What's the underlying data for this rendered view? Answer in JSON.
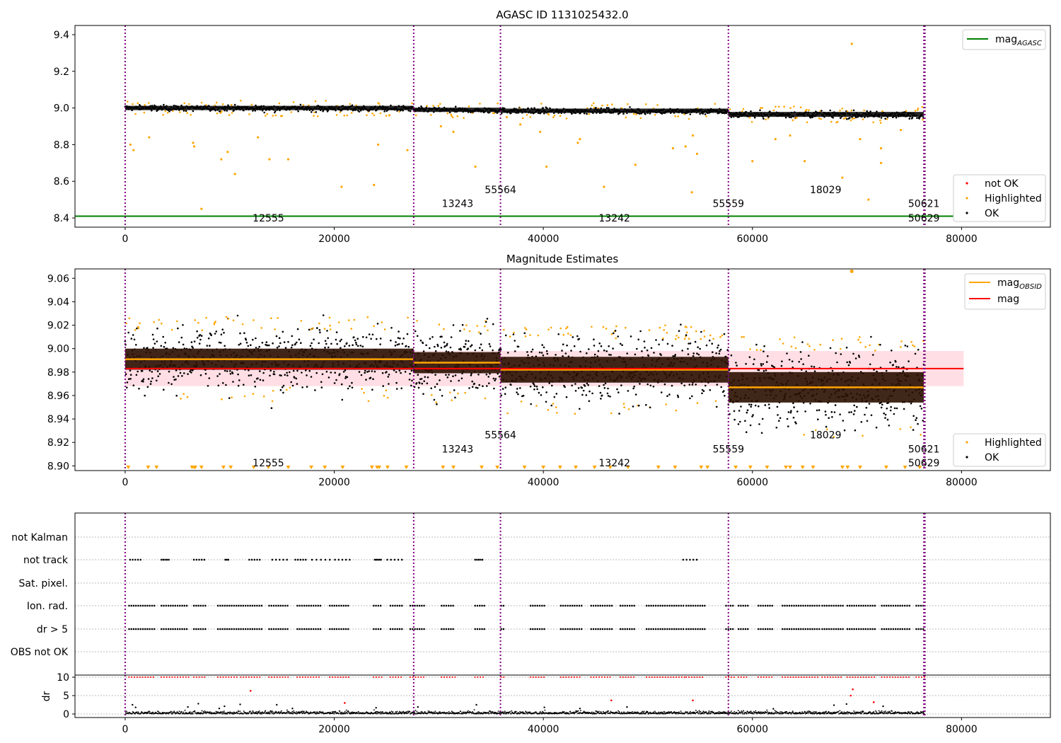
{
  "figure": {
    "background": "#ffffff",
    "colors": {
      "ok": "#000000",
      "highlighted": "#ffa500",
      "not_ok": "#ff0000",
      "agasc_line": "#008000",
      "obsid_mag": "#ffa500",
      "mag": "#ff0000",
      "obs_boundary": "#800080",
      "mag_band": "#ffc0cb"
    }
  },
  "chart_data": [
    {
      "id": "top",
      "type": "scatter",
      "title": "AGASC ID 1131025432.0",
      "xlabel": "",
      "ylabel": "",
      "xlim": [
        -4800,
        88500
      ],
      "ylim": [
        8.35,
        9.45
      ],
      "xticks": [
        0,
        20000,
        40000,
        60000,
        80000
      ],
      "yticks": [
        8.4,
        8.6,
        8.8,
        9.0,
        9.2,
        9.4
      ],
      "ytick_labels": [
        "8.4",
        "8.6",
        "8.8",
        "9.0",
        "9.2",
        "9.4"
      ],
      "grid": false,
      "obs_boundaries": [
        0,
        27600,
        35900,
        57700,
        76400,
        76500
      ],
      "agasc_mag": 8.41,
      "band_segments": [
        {
          "x": [
            0,
            27600
          ],
          "center": 9.0,
          "half": 0.013
        },
        {
          "x": [
            27600,
            35900
          ],
          "center": 8.99,
          "half": 0.013
        },
        {
          "x": [
            35900,
            57700
          ],
          "center": 8.985,
          "half": 0.013
        },
        {
          "x": [
            57700,
            76400
          ],
          "center": 8.965,
          "half": 0.015
        }
      ],
      "obsid_labels": [
        {
          "text": "12555",
          "x": 13700,
          "y": 8.4
        },
        {
          "text": "13243",
          "x": 31800,
          "y": 8.48
        },
        {
          "text": "55564",
          "x": 35900,
          "y": 8.555
        },
        {
          "text": "13242",
          "x": 46800,
          "y": 8.4
        },
        {
          "text": "55559",
          "x": 57700,
          "y": 8.48
        },
        {
          "text": "18029",
          "x": 67000,
          "y": 8.555
        },
        {
          "text": "50621",
          "x": 76400,
          "y": 8.48
        },
        {
          "text": "50629",
          "x": 76400,
          "y": 8.4
        }
      ],
      "outliers": [
        [
          500,
          8.8
        ],
        [
          800,
          8.77
        ],
        [
          2300,
          8.84
        ],
        [
          6500,
          8.81
        ],
        [
          6600,
          8.79
        ],
        [
          7300,
          8.45
        ],
        [
          9200,
          8.72
        ],
        [
          9800,
          8.76
        ],
        [
          10500,
          8.64
        ],
        [
          12700,
          8.84
        ],
        [
          13800,
          8.72
        ],
        [
          15600,
          8.72
        ],
        [
          20700,
          8.57
        ],
        [
          23800,
          8.58
        ],
        [
          24200,
          8.8
        ],
        [
          27000,
          8.77
        ],
        [
          30200,
          8.9
        ],
        [
          31400,
          8.87
        ],
        [
          33500,
          8.68
        ],
        [
          36500,
          8.95
        ],
        [
          37800,
          8.91
        ],
        [
          39700,
          8.87
        ],
        [
          40300,
          8.68
        ],
        [
          43500,
          8.83
        ],
        [
          43300,
          8.81
        ],
        [
          45800,
          8.57
        ],
        [
          48800,
          8.69
        ],
        [
          52400,
          8.78
        ],
        [
          53600,
          8.79
        ],
        [
          54300,
          8.85
        ],
        [
          54200,
          8.54
        ],
        [
          54700,
          8.75
        ],
        [
          60000,
          8.71
        ],
        [
          62200,
          8.83
        ],
        [
          63600,
          8.85
        ],
        [
          65000,
          8.71
        ],
        [
          68600,
          8.62
        ],
        [
          69500,
          9.35
        ],
        [
          70300,
          8.83
        ],
        [
          71100,
          8.5
        ],
        [
          72300,
          8.78
        ],
        [
          72300,
          8.7
        ],
        [
          74200,
          8.88
        ]
      ],
      "legend": {
        "position": "upper right",
        "entries": [
          {
            "label": "mag",
            "sub": "AGASC",
            "kind": "line",
            "color": "#008000"
          }
        ]
      },
      "legend2": {
        "position": "lower right",
        "entries": [
          {
            "label": "not OK",
            "color": "#ff0000"
          },
          {
            "label": "Highlighted",
            "color": "#ffa500"
          },
          {
            "label": "OK",
            "color": "#000000"
          }
        ]
      }
    },
    {
      "id": "mid",
      "type": "scatter",
      "title": "Magnitude Estimates",
      "xlabel": "",
      "ylabel": "",
      "xlim": [
        -4800,
        88500
      ],
      "ylim": [
        8.896,
        9.068
      ],
      "xticks": [
        0,
        20000,
        40000,
        60000,
        80000
      ],
      "yticks": [
        8.9,
        8.92,
        8.94,
        8.96,
        8.98,
        9.0,
        9.02,
        9.04,
        9.06
      ],
      "ytick_labels": [
        "8.90",
        "8.92",
        "8.94",
        "8.96",
        "8.98",
        "9.00",
        "9.02",
        "9.04",
        "9.06"
      ],
      "grid": false,
      "obs_boundaries": [
        0,
        27600,
        35900,
        57700,
        76400,
        76500
      ],
      "mag": 8.983,
      "mag_band": [
        8.968,
        8.998
      ],
      "mag_band_x": [
        0,
        80200
      ],
      "obsid_mags": [
        {
          "x": [
            0,
            27600
          ],
          "mag": 8.991,
          "half": 0.009,
          "spread": 0.024
        },
        {
          "x": [
            27600,
            35900
          ],
          "mag": 8.988,
          "half": 0.009,
          "spread": 0.024
        },
        {
          "x": [
            35900,
            57700
          ],
          "mag": 8.982,
          "half": 0.011,
          "spread": 0.026
        },
        {
          "x": [
            57700,
            76400
          ],
          "mag": 8.967,
          "half": 0.013,
          "spread": 0.031
        }
      ],
      "obsid_labels": [
        {
          "text": "12555",
          "x": 13700,
          "y": 8.9025
        },
        {
          "text": "13243",
          "x": 31800,
          "y": 8.9145
        },
        {
          "text": "55564",
          "x": 35900,
          "y": 8.9265
        },
        {
          "text": "13242",
          "x": 46800,
          "y": 8.9025
        },
        {
          "text": "55559",
          "x": 57700,
          "y": 8.9145
        },
        {
          "text": "18029",
          "x": 67000,
          "y": 8.9265
        },
        {
          "text": "50621",
          "x": 76400,
          "y": 8.9145
        },
        {
          "text": "50629",
          "x": 76400,
          "y": 8.9025
        }
      ],
      "clipped_markers_x": [
        300,
        2200,
        3000,
        6400,
        6600,
        6700,
        7300,
        9400,
        10100,
        12300,
        13700,
        15600,
        17800,
        19100,
        20800,
        23600,
        24100,
        24300,
        25100,
        26900,
        30400,
        31400,
        34100,
        35600,
        38200,
        40000,
        41600,
        43100,
        44900,
        46400,
        48100,
        51000,
        52600,
        55100,
        55700,
        58400,
        59800,
        61400,
        63200,
        63600,
        64800,
        65800,
        68600,
        69100,
        70300,
        72800,
        74600,
        76000
      ],
      "legend": {
        "position": "upper right",
        "entries": [
          {
            "label": "mag",
            "sub": "OBSID",
            "kind": "line",
            "color": "#ffa500"
          },
          {
            "label": "mag",
            "sub": "",
            "kind": "line",
            "color": "#ff0000"
          }
        ]
      },
      "legend2": {
        "position": "lower right",
        "entries": [
          {
            "label": "Highlighted",
            "color": "#ffa500"
          },
          {
            "label": "OK",
            "color": "#000000"
          }
        ]
      }
    },
    {
      "id": "flags",
      "type": "scatter",
      "xlim": [
        -4800,
        88500
      ],
      "categories": [
        "not Kalman",
        "not track",
        "Sat. pixel.",
        "Ion. rad.",
        "dr > 5",
        "OBS not OK"
      ],
      "grid": true,
      "obs_boundaries": [
        0,
        27600,
        35900,
        57700,
        76400,
        76500
      ],
      "not_track_clusters": [
        [
          400,
          1400
        ],
        [
          3400,
          4100
        ],
        [
          6500,
          7500
        ],
        [
          9500,
          9800
        ],
        [
          11800,
          12800
        ],
        [
          14000,
          15400
        ],
        [
          16200,
          17200
        ],
        [
          17800,
          19500
        ],
        [
          20000,
          21400
        ],
        [
          23800,
          24400
        ],
        [
          25000,
          26400
        ],
        [
          33400,
          34100
        ],
        [
          53300,
          54600
        ]
      ],
      "ion_dr_clusters": [
        [
          300,
          2800
        ],
        [
          3400,
          6000
        ],
        [
          6500,
          7600
        ],
        [
          8800,
          10800
        ],
        [
          11000,
          13000
        ],
        [
          13700,
          15600
        ],
        [
          16400,
          18600
        ],
        [
          19500,
          21400
        ],
        [
          23700,
          24500
        ],
        [
          25300,
          26400
        ],
        [
          27200,
          28600
        ],
        [
          30200,
          31500
        ],
        [
          33400,
          34400
        ],
        [
          35900,
          36300
        ],
        [
          38700,
          40100
        ],
        [
          41600,
          43600
        ],
        [
          44500,
          46500
        ],
        [
          47300,
          48800
        ],
        [
          49800,
          53500
        ],
        [
          53600,
          55400
        ],
        [
          57400,
          58200
        ],
        [
          58600,
          59600
        ],
        [
          60500,
          62000
        ],
        [
          62800,
          66400
        ],
        [
          66600,
          68600
        ],
        [
          69000,
          71800
        ],
        [
          72300,
          75000
        ],
        [
          75600,
          76400
        ]
      ]
    },
    {
      "id": "dr",
      "type": "scatter",
      "xlim": [
        -4800,
        88500
      ],
      "ylim": [
        -0.5,
        10.3
      ],
      "yticks": [
        0,
        5,
        10
      ],
      "ytick_labels": [
        "0",
        "5",
        "10"
      ],
      "xticks": [
        0,
        20000,
        40000,
        60000,
        80000
      ],
      "ylabel": "dr",
      "grid": true,
      "red_outliers": [
        [
          12000,
          6.3
        ],
        [
          21000,
          3.0
        ],
        [
          46500,
          3.7
        ],
        [
          54300,
          3.7
        ],
        [
          69600,
          6.7
        ],
        [
          69400,
          5.0
        ],
        [
          71600,
          3.2
        ]
      ],
      "black_outliers": [
        [
          700,
          2.5
        ],
        [
          1000,
          1.8
        ],
        [
          6000,
          1.9
        ],
        [
          7000,
          2.8
        ],
        [
          9000,
          1.5
        ],
        [
          9500,
          2.1
        ],
        [
          11000,
          2.6
        ],
        [
          14500,
          2.5
        ],
        [
          16000,
          1.5
        ],
        [
          24000,
          1.7
        ],
        [
          28000,
          1.9
        ],
        [
          33600,
          2.5
        ],
        [
          40100,
          1.8
        ],
        [
          43500,
          1.5
        ],
        [
          48000,
          1.9
        ],
        [
          62000,
          1.4
        ],
        [
          67800,
          2.4
        ],
        [
          69000,
          2.7
        ],
        [
          72500,
          2.1
        ]
      ]
    }
  ]
}
